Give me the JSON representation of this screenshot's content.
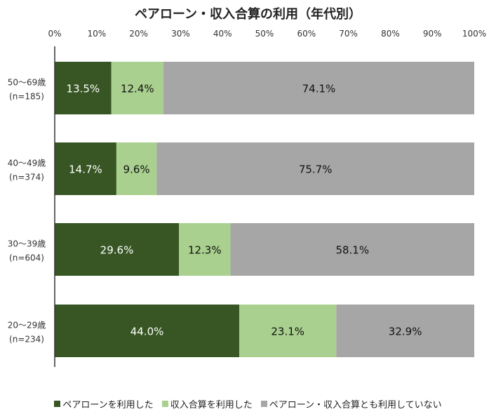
{
  "chart_data": {
    "type": "bar",
    "orientation": "horizontal",
    "stacked": true,
    "title": "ペアローン・収入合算の利用（年代別）",
    "categories": [
      {
        "label": "50～69歳",
        "sub": "(n=185)"
      },
      {
        "label": "40～49歳",
        "sub": "(n=374)"
      },
      {
        "label": "30～39歳",
        "sub": "(n=604)"
      },
      {
        "label": "20～29歳",
        "sub": "(n=234)"
      }
    ],
    "series": [
      {
        "name": "ペアローンを利用した",
        "color": "#375623",
        "label_color": "#ffffff",
        "values": [
          13.5,
          14.7,
          29.6,
          44.0
        ]
      },
      {
        "name": "収入合算を利用した",
        "color": "#a9d08e",
        "label_color": "#111111",
        "values": [
          12.4,
          9.6,
          12.3,
          23.1
        ]
      },
      {
        "name": "ペアローン・収入合算とも利用していない",
        "color": "#a6a6a6",
        "label_color": "#111111",
        "values": [
          74.1,
          75.7,
          58.1,
          32.9
        ]
      }
    ],
    "xlim": [
      0,
      100
    ],
    "xticks": [
      "0%",
      "10%",
      "20%",
      "30%",
      "40%",
      "50%",
      "60%",
      "70%",
      "80%",
      "90%",
      "100%"
    ],
    "value_suffix": "%",
    "grid": false,
    "legend_position": "bottom"
  }
}
